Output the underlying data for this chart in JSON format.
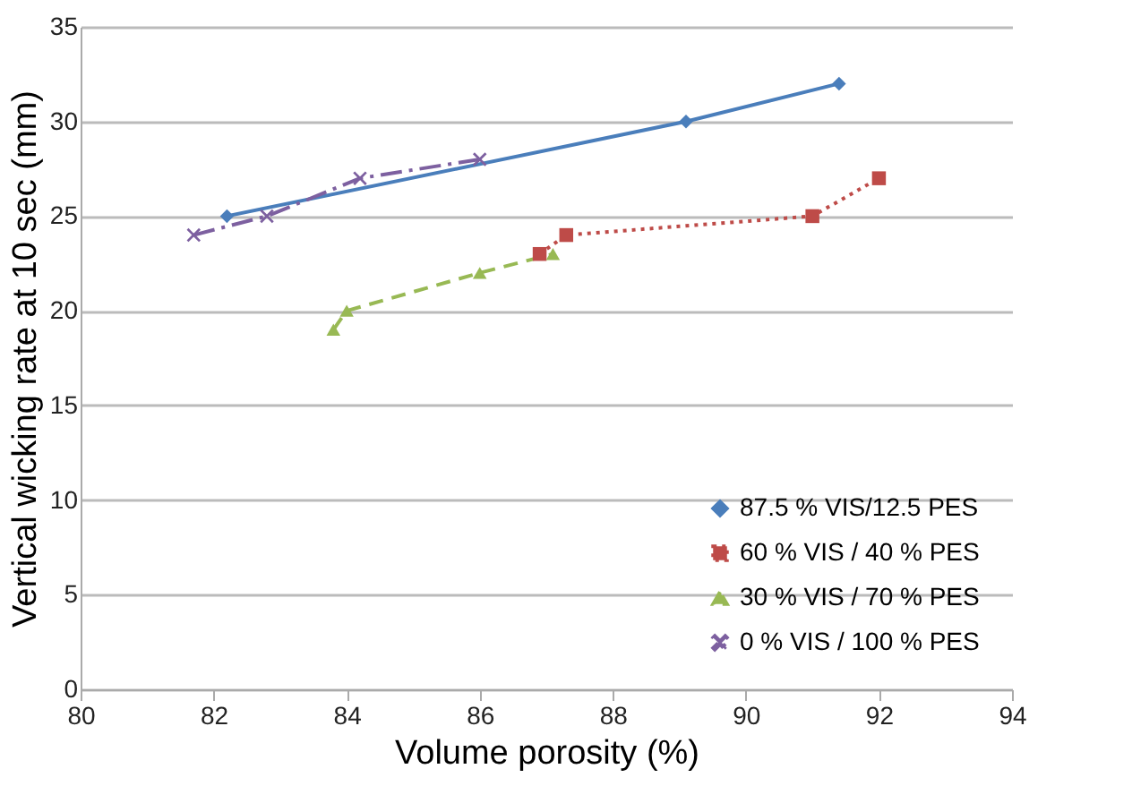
{
  "chart_data": {
    "type": "line",
    "xlabel": "Volume porosity (%)",
    "ylabel": "Vertical wicking rate at 10 sec (mm)",
    "xlim": [
      80,
      94
    ],
    "xticks": [
      80,
      82,
      84,
      86,
      88,
      90,
      92,
      94
    ],
    "ylim": [
      0,
      35
    ],
    "yticks": [
      0,
      5,
      10,
      15,
      20,
      25,
      30,
      35
    ],
    "grid": "y",
    "legend": "bottom right",
    "series": [
      {
        "name": "87.5 % VIS/12.5 PES",
        "color": "#4a7ebb",
        "marker": "diamond",
        "line_style": "solid",
        "x": [
          82.2,
          89.1,
          91.4
        ],
        "values": [
          25,
          30,
          32
        ]
      },
      {
        "name": "60 % VIS / 40 % PES",
        "color": "#be4b48",
        "marker": "square",
        "line_style": "dotted",
        "x": [
          86.9,
          87.3,
          91,
          92
        ],
        "values": [
          23,
          24,
          25,
          27
        ]
      },
      {
        "name": "30 % VIS / 70 % PES",
        "color": "#98b954",
        "marker": "triangle",
        "line_style": "dashed",
        "x": [
          83.8,
          84,
          86,
          87.1
        ],
        "values": [
          19,
          20,
          22,
          23
        ]
      },
      {
        "name": "0 % VIS / 100 % PES",
        "color": "#7d60a0",
        "marker": "cross",
        "line_style": "dashdot",
        "x": [
          81.7,
          82.8,
          84.2,
          86
        ],
        "values": [
          24,
          25,
          27,
          28
        ]
      }
    ]
  }
}
